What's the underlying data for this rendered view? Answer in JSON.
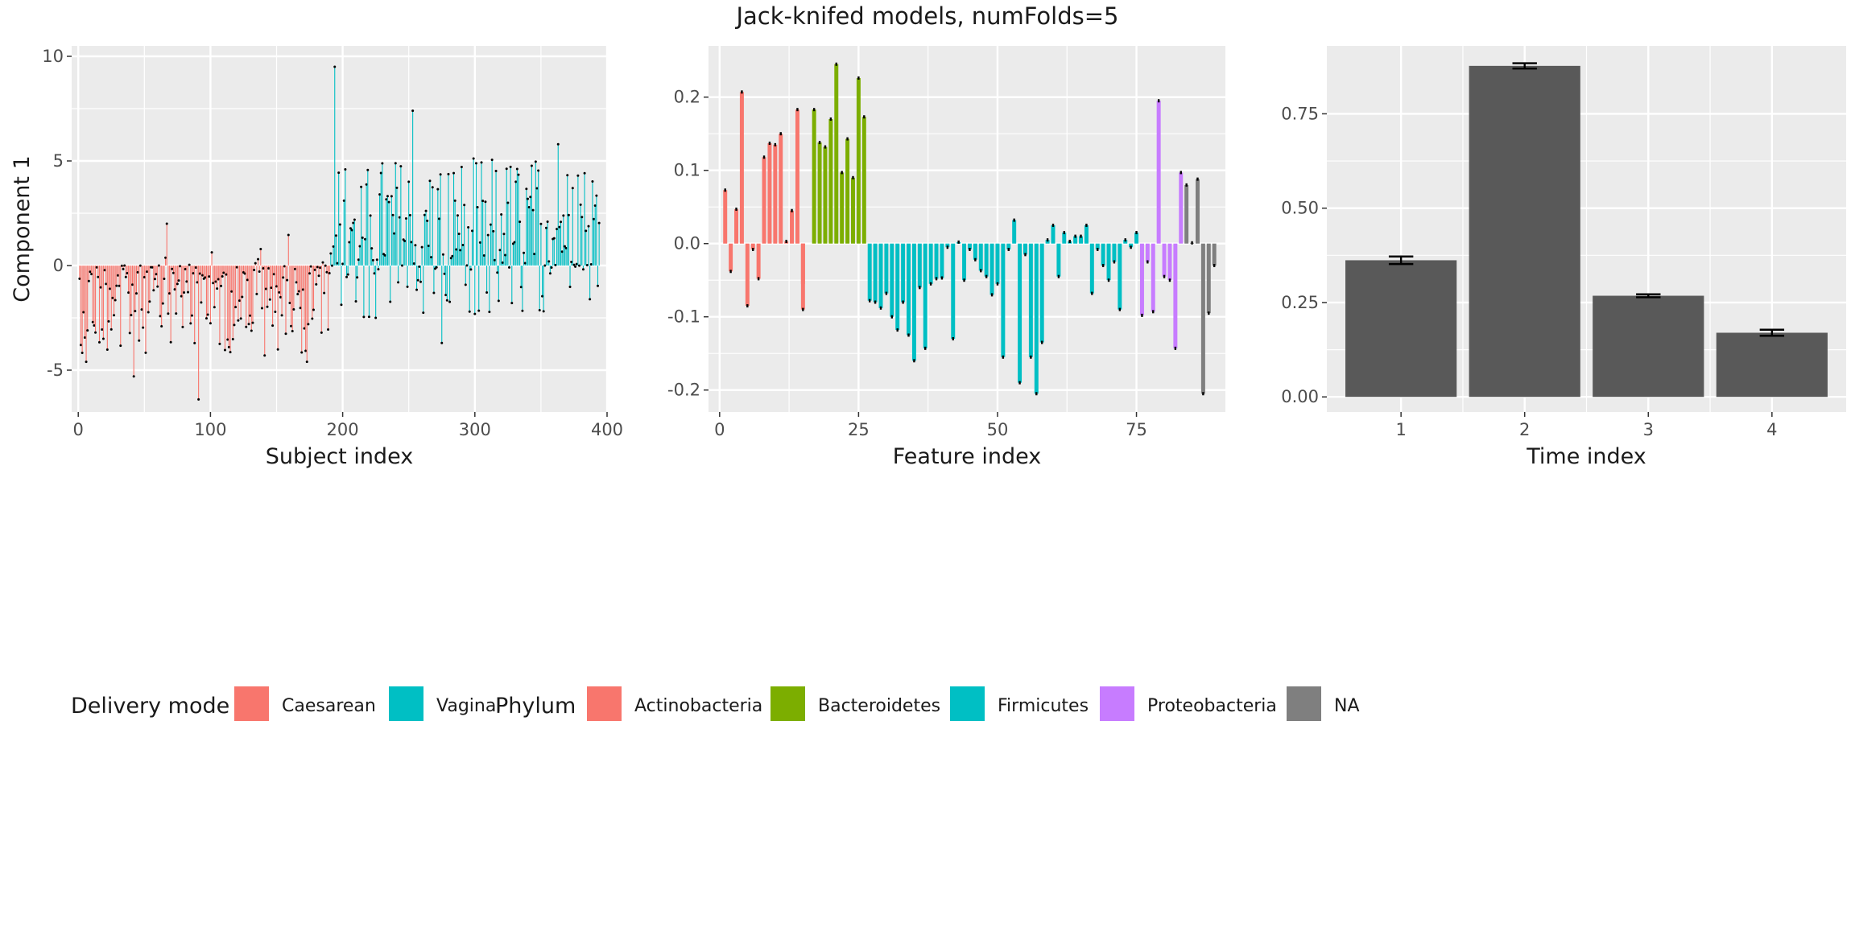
{
  "figure": {
    "title": "Jack-knifed models, numFolds=5"
  },
  "colors": {
    "panel_bg": "#EBEBEB",
    "grid": "#FFFFFF",
    "caesarean": "#F8766D",
    "vaginal": "#00BFC4",
    "actinobacteria": "#F8766D",
    "bacteroidetes": "#7CAE00",
    "firmicutes": "#00BFC4",
    "proteobacteria": "#C77CFF",
    "na": "#7F7F7F",
    "bar": "#595959"
  },
  "legend": {
    "delivery_title": "Delivery mode",
    "delivery_items": [
      {
        "label": "Caesarean",
        "color": "#F8766D"
      },
      {
        "label": "Vaginal",
        "color": "#00BFC4"
      }
    ],
    "phylum_title": "Phylum",
    "phylum_items": [
      {
        "label": "Actinobacteria",
        "color": "#F8766D"
      },
      {
        "label": "Bacteroidetes",
        "color": "#7CAE00"
      },
      {
        "label": "Firmicutes",
        "color": "#00BFC4"
      },
      {
        "label": "Proteobacteria",
        "color": "#C77CFF"
      },
      {
        "label": "NA",
        "color": "#7F7F7F"
      }
    ]
  },
  "chart_data": [
    {
      "type": "bar",
      "panel": "subject",
      "xlabel": "Subject index",
      "ylabel": "Component 1",
      "xlim": [
        -5,
        400
      ],
      "ylim": [
        -7,
        10.5
      ],
      "xticks": [
        0,
        100,
        200,
        300,
        400
      ],
      "yticks": [
        -5,
        0,
        5,
        10
      ],
      "groups": [
        {
          "name": "Caesarean",
          "x_range": [
            1,
            190
          ]
        },
        {
          "name": "Vaginal",
          "x_range": [
            191,
            394
          ]
        }
      ],
      "highlighted_values": [
        {
          "x": 2,
          "y": -3.8
        },
        {
          "x": 6,
          "y": -4.6
        },
        {
          "x": 11,
          "y": -2.7
        },
        {
          "x": 19,
          "y": -3.5
        },
        {
          "x": 42,
          "y": -5.3
        },
        {
          "x": 67,
          "y": 2.0
        },
        {
          "x": 91,
          "y": -6.4
        },
        {
          "x": 141,
          "y": -4.3
        },
        {
          "x": 173,
          "y": -4.6
        },
        {
          "x": 194,
          "y": 9.5
        },
        {
          "x": 201,
          "y": 3.1
        },
        {
          "x": 225,
          "y": -2.5
        },
        {
          "x": 253,
          "y": 7.4
        },
        {
          "x": 275,
          "y": -3.7
        },
        {
          "x": 363,
          "y": 5.8
        },
        {
          "x": 374,
          "y": 3.7
        },
        {
          "x": 378,
          "y": 4.3
        }
      ]
    },
    {
      "type": "bar",
      "panel": "feature",
      "xlabel": "Feature index",
      "ylabel": "",
      "xlim": [
        -2,
        91
      ],
      "ylim": [
        -0.23,
        0.27
      ],
      "xticks": [
        0,
        25,
        50,
        75
      ],
      "yticks": [
        -0.2,
        -0.1,
        0.0,
        0.1,
        0.2
      ],
      "series": [
        {
          "name": "Actinobacteria",
          "x": [
            1,
            2,
            3,
            4,
            5,
            6,
            7,
            8,
            9,
            10,
            11,
            12,
            13,
            14,
            15
          ],
          "values": [
            0.073,
            -0.038,
            0.047,
            0.207,
            -0.085,
            -0.008,
            -0.048,
            0.118,
            0.137,
            0.135,
            0.15,
            0.003,
            0.045,
            0.183,
            -0.055
          ]
        },
        {
          "name": "Actinobacteria",
          "x": [
            15
          ],
          "values": [
            -0.09
          ]
        },
        {
          "name": "Bacteroidetes",
          "x": [
            17,
            18,
            19,
            20,
            21,
            22,
            23,
            24,
            25,
            26
          ],
          "values": [
            0.183,
            0.138,
            0.132,
            0.17,
            0.245,
            0.097,
            0.143,
            0.09,
            0.226,
            0.173
          ]
        },
        {
          "name": "Firmicutes",
          "x": [
            27,
            28,
            29,
            30,
            31,
            32,
            33,
            34,
            35,
            36,
            37,
            38,
            39,
            40,
            41,
            42,
            43,
            44,
            45,
            46,
            47,
            48,
            49,
            50,
            51,
            52,
            53,
            54,
            55,
            56,
            57,
            58,
            59,
            60,
            61,
            62,
            63,
            64,
            65,
            66,
            67,
            68,
            69,
            70,
            71,
            72,
            73,
            74,
            75
          ],
          "values": [
            -0.078,
            -0.08,
            -0.088,
            -0.068,
            -0.1,
            -0.118,
            -0.08,
            -0.125,
            -0.16,
            -0.06,
            -0.143,
            -0.055,
            -0.048,
            -0.047,
            -0.005,
            -0.13,
            0.002,
            -0.05,
            -0.008,
            -0.022,
            -0.037,
            -0.045,
            -0.07,
            -0.055,
            -0.155,
            -0.008,
            0.032,
            -0.19,
            -0.015,
            -0.155,
            -0.205,
            -0.135,
            0.005,
            0.025,
            -0.045,
            0.015,
            0.003,
            0.01,
            0.01,
            0.025,
            -0.068,
            -0.008,
            -0.03,
            -0.05,
            -0.025,
            -0.09,
            0.005,
            -0.005,
            0.015
          ]
        },
        {
          "name": "Proteobacteria",
          "x": [
            76,
            77,
            78,
            79,
            80,
            81,
            82,
            83
          ],
          "values": [
            -0.098,
            -0.025,
            -0.093,
            0.195,
            -0.045,
            -0.05,
            -0.143,
            0.097
          ]
        },
        {
          "name": "NA",
          "x": [
            84,
            85,
            86,
            87,
            88,
            89
          ],
          "values": [
            0.08,
            0.001,
            0.088,
            -0.205,
            -0.095,
            -0.03
          ]
        }
      ]
    },
    {
      "type": "bar",
      "panel": "time",
      "xlabel": "Time index",
      "ylabel": "",
      "categories": [
        "1",
        "2",
        "3",
        "4"
      ],
      "values": [
        0.362,
        0.877,
        0.268,
        0.17
      ],
      "error": [
        0.01,
        0.007,
        0.004,
        0.008
      ],
      "ylim": [
        -0.04,
        0.93
      ],
      "yticks": [
        "0.00",
        "0.25",
        "0.50",
        "0.75"
      ]
    }
  ]
}
